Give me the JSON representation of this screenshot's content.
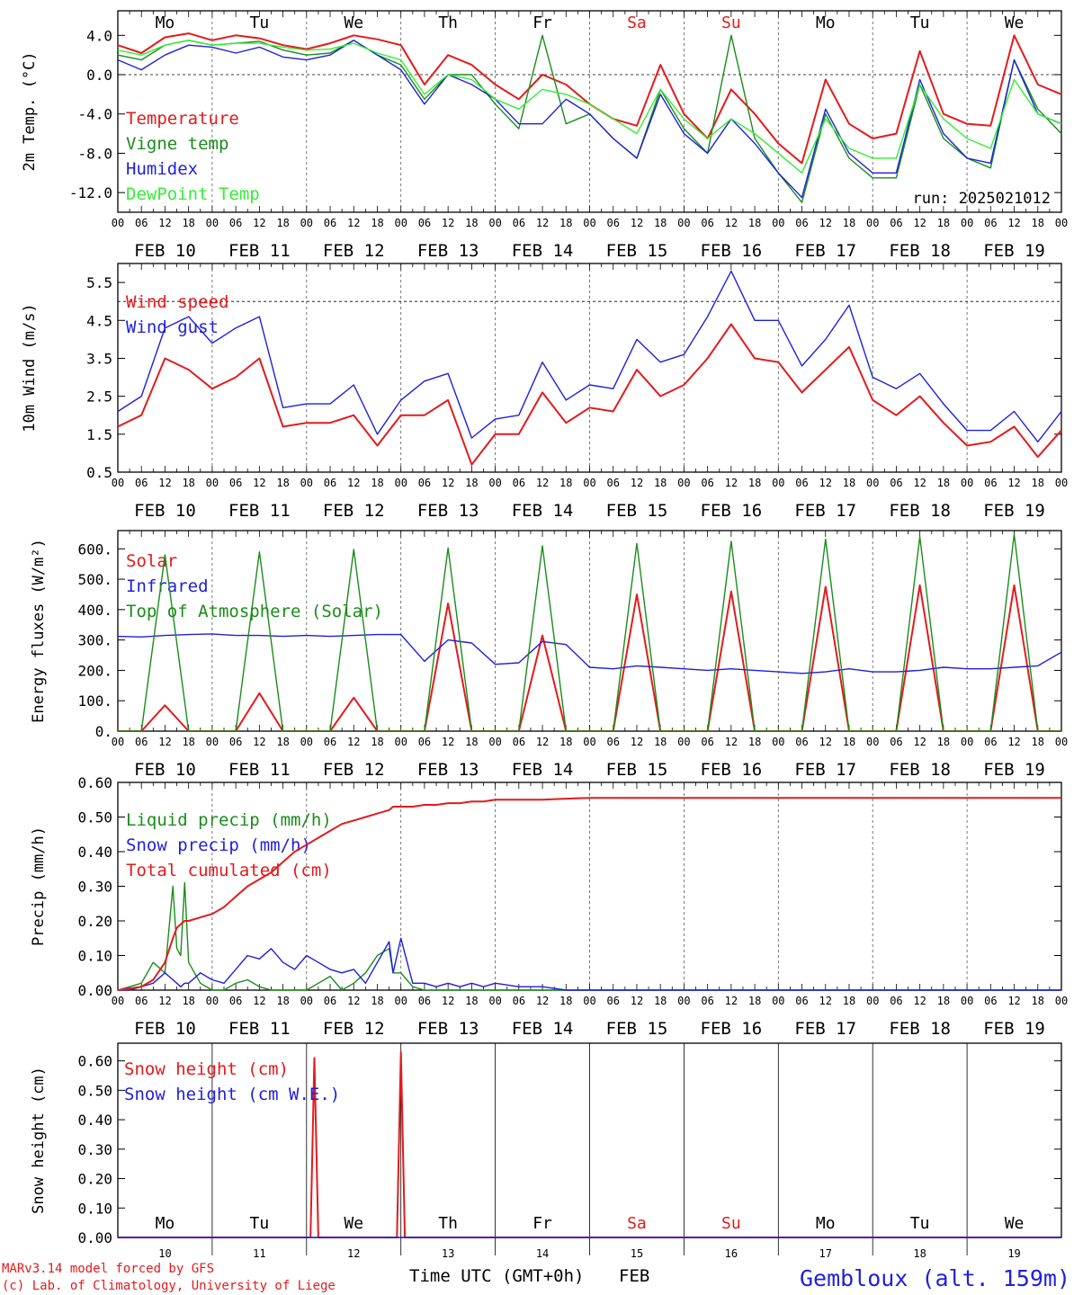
{
  "run_label": "run: 2025021012",
  "site_label": "Gembloux (alt. 159m)",
  "credits": [
    "MARv3.14 model forced by GFS",
    "(c) Lab. of Climatology, University of Liege"
  ],
  "time_axis_label": "Time UTC (GMT+0h)",
  "month_label": "FEB",
  "colors": {
    "red": "#e41a1c",
    "green": "#1a8c1a",
    "blue": "#1f1fdd",
    "light_green": "#33ee33",
    "black": "#000000",
    "grid": "#555555"
  },
  "days": [
    {
      "weekday": "Mo",
      "date": "FEB 10",
      "num": "10",
      "weekend": false
    },
    {
      "weekday": "Tu",
      "date": "FEB 11",
      "num": "11",
      "weekend": false
    },
    {
      "weekday": "We",
      "date": "FEB 12",
      "num": "12",
      "weekend": false
    },
    {
      "weekday": "Th",
      "date": "FEB 13",
      "num": "13",
      "weekend": false
    },
    {
      "weekday": "Fr",
      "date": "FEB 14",
      "num": "14",
      "weekend": false
    },
    {
      "weekday": "Sa",
      "date": "FEB 15",
      "num": "15",
      "weekend": true
    },
    {
      "weekday": "Su",
      "date": "FEB 16",
      "num": "16",
      "weekend": true
    },
    {
      "weekday": "Mo",
      "date": "FEB 17",
      "num": "17",
      "weekend": false
    },
    {
      "weekday": "Tu",
      "date": "FEB 18",
      "num": "18",
      "weekend": false
    },
    {
      "weekday": "We",
      "date": "FEB 19",
      "num": "19",
      "weekend": false
    }
  ],
  "hour_ticks": [
    "00",
    "06",
    "12",
    "18"
  ],
  "chart_data": [
    {
      "type": "line",
      "ylabel": "2m Temp. (°C)",
      "ylim": [
        -14,
        6.5
      ],
      "yticks": [
        "4.0",
        "0.0",
        "-4.0",
        "-8.0",
        "-12.0"
      ],
      "ytick_values": [
        4,
        0,
        -4,
        -8,
        -12
      ],
      "ref_line": 0,
      "x_hours": [
        0,
        6,
        12,
        18,
        24,
        30,
        36,
        42,
        48,
        54,
        60,
        66,
        72,
        78,
        84,
        90,
        96,
        102,
        108,
        114,
        120,
        126,
        132,
        138,
        144,
        150,
        156,
        162,
        168,
        174,
        180,
        186,
        192,
        198,
        204,
        210,
        216,
        222,
        228,
        234,
        240
      ],
      "series": [
        {
          "name": "Temperature",
          "color": "red",
          "values": [
            3,
            2.2,
            3.8,
            4.2,
            3.5,
            4,
            3.7,
            3,
            2.6,
            3.2,
            4,
            3.6,
            3,
            -1,
            2,
            1,
            -1,
            -2.5,
            0,
            -1,
            -3,
            -4.5,
            -5.2,
            1,
            -4,
            -6.5,
            -1.5,
            -4,
            -7,
            -9,
            -0.5,
            -5,
            -6.5,
            -6,
            2.4,
            -4,
            -5,
            -5.2,
            4,
            -1,
            -2
          ]
        },
        {
          "name": "Vigne temp",
          "color": "green",
          "values": [
            2,
            1.5,
            3,
            3.5,
            3,
            3.2,
            3.4,
            2.5,
            2,
            2.2,
            3.5,
            2,
            1,
            -2.5,
            0,
            0,
            -3,
            -5.5,
            4,
            -5,
            -4,
            -6.5,
            -8.5,
            -1.5,
            -5.5,
            -8,
            4,
            -6.5,
            -10,
            -13,
            -4,
            -8.5,
            -10.5,
            -10.5,
            -1,
            -6.5,
            -8.5,
            -9.5,
            1.5,
            -3.5,
            -6
          ]
        },
        {
          "name": "Humidex",
          "color": "blue",
          "values": [
            1.5,
            0.5,
            2,
            3,
            2.8,
            2.2,
            2.8,
            1.8,
            1.5,
            2,
            3.5,
            2,
            0.5,
            -3,
            0,
            -1,
            -2.5,
            -5,
            -5,
            -2.5,
            -4,
            -6.5,
            -8.5,
            -2,
            -6,
            -8,
            -4.5,
            -7,
            -10,
            -12.5,
            -3.5,
            -8,
            -10,
            -10,
            -0.5,
            -6,
            -8.5,
            -9,
            1.5,
            -4,
            -5
          ]
        },
        {
          "name": "DewPoint Temp",
          "color": "light_green",
          "values": [
            2.5,
            2,
            3,
            3.5,
            3,
            3.2,
            3.2,
            2.8,
            2.5,
            2.6,
            3.2,
            2.2,
            1.5,
            -2,
            0,
            -0.5,
            -2.5,
            -3.5,
            -1.5,
            -2,
            -3,
            -4.5,
            -6,
            -1.5,
            -4.5,
            -6.5,
            -4.5,
            -6,
            -8,
            -10,
            -4.5,
            -7.5,
            -8.5,
            -8.5,
            -1,
            -4.5,
            -6.5,
            -7.5,
            -0.5,
            -4,
            -5
          ]
        }
      ]
    },
    {
      "type": "line",
      "ylabel": "10m Wind (m/s)",
      "ylim": [
        0.5,
        6.0
      ],
      "yticks": [
        "5.5",
        "4.5",
        "3.5",
        "2.5",
        "1.5",
        "0.5"
      ],
      "ytick_values": [
        5.5,
        4.5,
        3.5,
        2.5,
        1.5,
        0.5
      ],
      "ref_line": 5,
      "x_hours": [
        0,
        6,
        12,
        18,
        24,
        30,
        36,
        42,
        48,
        54,
        60,
        66,
        72,
        78,
        84,
        90,
        96,
        102,
        108,
        114,
        120,
        126,
        132,
        138,
        144,
        150,
        156,
        162,
        168,
        174,
        180,
        186,
        192,
        198,
        204,
        210,
        216,
        222,
        228,
        234,
        240
      ],
      "series": [
        {
          "name": "Wind speed",
          "color": "red",
          "values": [
            1.7,
            2,
            3.5,
            3.2,
            2.7,
            3,
            3.5,
            1.7,
            1.8,
            1.8,
            2,
            1.2,
            2,
            2,
            2.4,
            0.7,
            1.5,
            1.5,
            2.6,
            1.8,
            2.2,
            2.1,
            3.2,
            2.5,
            2.8,
            3.5,
            4.4,
            3.5,
            3.4,
            2.6,
            3.2,
            3.8,
            2.4,
            2,
            2.5,
            1.8,
            1.2,
            1.3,
            1.7,
            0.9,
            1.6
          ]
        },
        {
          "name": "Wind gust",
          "color": "blue",
          "values": [
            2.1,
            2.5,
            4.3,
            4.6,
            3.9,
            4.3,
            4.6,
            2.2,
            2.3,
            2.3,
            2.8,
            1.5,
            2.4,
            2.9,
            3.1,
            1.4,
            1.9,
            2,
            3.4,
            2.4,
            2.8,
            2.7,
            4,
            3.4,
            3.6,
            4.6,
            5.8,
            4.5,
            4.5,
            3.3,
            4,
            4.9,
            3,
            2.7,
            3.1,
            2.3,
            1.6,
            1.6,
            2.1,
            1.3,
            2.1
          ]
        }
      ]
    },
    {
      "type": "line",
      "ylabel": "Energy fluxes (W/m²)",
      "ylim": [
        0,
        660
      ],
      "yticks": [
        "600.",
        "500.",
        "400.",
        "300.",
        "200.",
        "100.",
        "0."
      ],
      "ytick_values": [
        600,
        500,
        400,
        300,
        200,
        100,
        0
      ],
      "x_hours": [
        0,
        6,
        12,
        18,
        24,
        30,
        36,
        42,
        48,
        54,
        60,
        66,
        72,
        78,
        84,
        90,
        96,
        102,
        108,
        114,
        120,
        126,
        132,
        138,
        144,
        150,
        156,
        162,
        168,
        174,
        180,
        186,
        192,
        198,
        204,
        210,
        216,
        222,
        228,
        234,
        240
      ],
      "series": [
        {
          "name": "Solar",
          "color": "red",
          "values": [
            0,
            0,
            85,
            0,
            0,
            0,
            125,
            0,
            0,
            0,
            110,
            0,
            0,
            0,
            420,
            0,
            0,
            0,
            315,
            0,
            0,
            0,
            450,
            0,
            0,
            0,
            460,
            0,
            0,
            0,
            475,
            0,
            0,
            0,
            480,
            0,
            0,
            0,
            480,
            0,
            0
          ]
        },
        {
          "name": "Infrared",
          "color": "blue",
          "values": [
            312,
            310,
            315,
            318,
            320,
            315,
            315,
            312,
            315,
            312,
            315,
            318,
            318,
            230,
            300,
            290,
            220,
            225,
            295,
            285,
            210,
            205,
            215,
            210,
            205,
            200,
            205,
            200,
            195,
            190,
            195,
            205,
            195,
            195,
            200,
            210,
            205,
            205,
            210,
            215,
            260
          ]
        },
        {
          "name": "Top of Atmosphere (Solar)",
          "color": "green",
          "values": [
            0,
            0,
            580,
            0,
            0,
            0,
            590,
            0,
            0,
            0,
            598,
            0,
            0,
            0,
            603,
            0,
            0,
            0,
            610,
            0,
            0,
            0,
            618,
            0,
            0,
            0,
            625,
            0,
            0,
            0,
            632,
            0,
            0,
            0,
            640,
            0,
            0,
            0,
            648,
            0,
            0
          ]
        }
      ]
    },
    {
      "type": "line",
      "ylabel": "Precip (mm/h)",
      "ylim": [
        0,
        0.6
      ],
      "yticks": [
        "0.60",
        "0.50",
        "0.40",
        "0.30",
        "0.20",
        "0.10",
        "0.00"
      ],
      "ytick_values": [
        0.6,
        0.5,
        0.4,
        0.3,
        0.2,
        0.1,
        0
      ],
      "x_hours": [
        0,
        3,
        6,
        9,
        12,
        14,
        15,
        16,
        17,
        18,
        21,
        24,
        27,
        30,
        33,
        36,
        39,
        42,
        45,
        48,
        51,
        54,
        57,
        60,
        63,
        66,
        69,
        70,
        72,
        75,
        78,
        81,
        84,
        87,
        90,
        93,
        96,
        102,
        108,
        114,
        120,
        132,
        144,
        156,
        168,
        180,
        192,
        204,
        216,
        228,
        240
      ],
      "series": [
        {
          "name": "Liquid precip (mm/h)",
          "color": "green",
          "values": [
            0,
            0.01,
            0.02,
            0.08,
            0.05,
            0.3,
            0.12,
            0.1,
            0.31,
            0.08,
            0.02,
            0,
            0,
            0.02,
            0.03,
            0.01,
            0,
            0,
            0,
            0,
            0.02,
            0.04,
            0,
            0.02,
            0.05,
            0.1,
            0.12,
            0.05,
            0.05,
            0.01,
            0,
            0,
            0,
            0,
            0,
            0,
            0,
            0,
            0,
            0,
            0,
            0,
            0,
            0,
            0,
            0,
            0,
            0,
            0,
            0,
            0
          ]
        },
        {
          "name": "Snow precip (mm/h)",
          "color": "blue",
          "values": [
            0,
            0,
            0.01,
            0.02,
            0.05,
            0.03,
            0.02,
            0.01,
            0.02,
            0.02,
            0.05,
            0.03,
            0.02,
            0.06,
            0.1,
            0.09,
            0.12,
            0.08,
            0.06,
            0.1,
            0.08,
            0.06,
            0.05,
            0.06,
            0.02,
            0.08,
            0.14,
            0.05,
            0.15,
            0.02,
            0.02,
            0.01,
            0.02,
            0.01,
            0.02,
            0.01,
            0.02,
            0.01,
            0.01,
            0,
            0,
            0,
            0,
            0,
            0,
            0,
            0,
            0,
            0,
            0,
            0
          ]
        },
        {
          "name": "Total cumulated (cm)",
          "color": "red",
          "values": [
            0,
            0.005,
            0.01,
            0.03,
            0.08,
            0.15,
            0.18,
            0.19,
            0.2,
            0.2,
            0.21,
            0.22,
            0.24,
            0.27,
            0.3,
            0.32,
            0.34,
            0.37,
            0.4,
            0.42,
            0.44,
            0.46,
            0.48,
            0.49,
            0.5,
            0.51,
            0.52,
            0.53,
            0.53,
            0.53,
            0.535,
            0.535,
            0.54,
            0.54,
            0.545,
            0.545,
            0.55,
            0.55,
            0.55,
            0.553,
            0.555,
            0.555,
            0.555,
            0.555,
            0.555,
            0.555,
            0.555,
            0.555,
            0.555,
            0.555,
            0.555
          ]
        }
      ]
    },
    {
      "type": "line",
      "ylabel": "Snow height (cm)",
      "ylim": [
        0,
        0.66
      ],
      "yticks": [
        "0.60",
        "0.50",
        "0.40",
        "0.30",
        "0.20",
        "0.10",
        "0.00"
      ],
      "ytick_values": [
        0.6,
        0.5,
        0.4,
        0.3,
        0.2,
        0.1,
        0
      ],
      "x_hours": [
        0,
        48,
        49,
        50,
        51,
        52,
        70,
        71,
        72,
        73,
        74,
        240
      ],
      "series": [
        {
          "name": "Snow height (cm)",
          "color": "red",
          "values": [
            0,
            0,
            0,
            0.61,
            0,
            0,
            0,
            0,
            0.63,
            0,
            0,
            0
          ]
        },
        {
          "name": "Snow height (cm W.E.)",
          "color": "blue",
          "values": [
            0,
            0,
            0,
            0,
            0,
            0,
            0,
            0,
            0,
            0,
            0,
            0
          ]
        }
      ]
    }
  ]
}
